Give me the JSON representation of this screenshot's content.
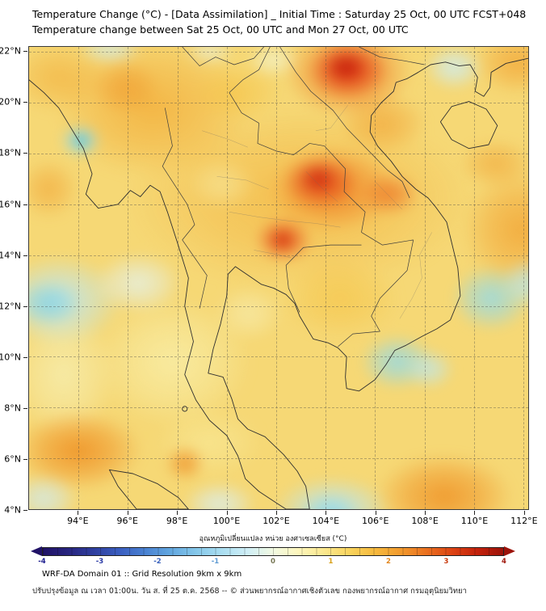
{
  "header": {
    "title": "Temperature Change (°C) - [Data Assimilation] _ Initial Time : Saturday 25 Oct, 00 UTC FCST+048",
    "subtitle": "Temperature change between Sat 25 Oct, 00 UTC and Mon 27 Oct, 00 UTC"
  },
  "map": {
    "lon_range": [
      92.0,
      112.2
    ],
    "lat_range": [
      4.0,
      22.2
    ],
    "base_color": "#f6d875",
    "x_ticks": [
      {
        "label": "94°E",
        "lon": 94
      },
      {
        "label": "96°E",
        "lon": 96
      },
      {
        "label": "98°E",
        "lon": 98
      },
      {
        "label": "100°E",
        "lon": 100
      },
      {
        "label": "102°E",
        "lon": 102
      },
      {
        "label": "104°E",
        "lon": 104
      },
      {
        "label": "106°E",
        "lon": 106
      },
      {
        "label": "108°E",
        "lon": 108
      },
      {
        "label": "110°E",
        "lon": 110
      },
      {
        "label": "112°E",
        "lon": 112
      }
    ],
    "y_ticks": [
      {
        "label": "22°N",
        "lat": 22
      },
      {
        "label": "20°N",
        "lat": 20
      },
      {
        "label": "18°N",
        "lat": 18
      },
      {
        "label": "16°N",
        "lat": 16
      },
      {
        "label": "14°N",
        "lat": 14
      },
      {
        "label": "12°N",
        "lat": 12
      },
      {
        "label": "10°N",
        "lat": 10
      },
      {
        "label": "8°N",
        "lat": 8
      },
      {
        "label": "6°N",
        "lat": 6
      },
      {
        "label": "4°N",
        "lat": 4
      }
    ],
    "regions": [
      {
        "lon": 103.0,
        "lat": 16.2,
        "rx": 7.0,
        "ry": 3.6,
        "color": "#f3ae38",
        "alpha": 0.6
      },
      {
        "lon": 97.0,
        "lat": 19.8,
        "rx": 4.0,
        "ry": 2.8,
        "color": "#f2a832",
        "alpha": 0.7
      },
      {
        "lon": 93.2,
        "lat": 21.0,
        "rx": 2.0,
        "ry": 1.4,
        "color": "#f2a832",
        "alpha": 0.55
      },
      {
        "lon": 104.6,
        "lat": 12.3,
        "rx": 2.4,
        "ry": 1.6,
        "color": "#f5c244",
        "alpha": 0.6
      },
      {
        "lon": 100.4,
        "lat": 20.4,
        "rx": 1.8,
        "ry": 1.2,
        "color": "#f5c244",
        "alpha": 0.6
      },
      {
        "lon": 97.8,
        "lat": 9.8,
        "rx": 3.2,
        "ry": 2.6,
        "color": "#f8eda6",
        "alpha": 0.85
      },
      {
        "lon": 93.4,
        "lat": 9.3,
        "rx": 2.2,
        "ry": 2.6,
        "color": "#f6eeb0",
        "alpha": 0.8
      },
      {
        "lon": 99.3,
        "lat": 6.6,
        "rx": 2.2,
        "ry": 1.4,
        "color": "#f8e896",
        "alpha": 0.7
      },
      {
        "lon": 94.0,
        "lat": 6.3,
        "rx": 2.6,
        "ry": 1.6,
        "color": "#ef9226",
        "alpha": 0.9
      },
      {
        "lon": 98.3,
        "lat": 5.8,
        "rx": 0.8,
        "ry": 0.7,
        "color": "#ee8f26",
        "alpha": 0.8
      },
      {
        "lon": 108.8,
        "lat": 4.5,
        "rx": 2.8,
        "ry": 1.7,
        "color": "#ef9226",
        "alpha": 0.85
      },
      {
        "lon": 111.9,
        "lat": 15.0,
        "rx": 2.4,
        "ry": 2.4,
        "color": "#f1a030",
        "alpha": 0.75
      },
      {
        "lon": 111.8,
        "lat": 21.6,
        "rx": 1.8,
        "ry": 1.3,
        "color": "#f1a030",
        "alpha": 0.7
      },
      {
        "lon": 110.9,
        "lat": 17.6,
        "rx": 1.5,
        "ry": 1.0,
        "color": "#f0a334",
        "alpha": 0.6
      },
      {
        "lon": 106.3,
        "lat": 19.2,
        "rx": 1.8,
        "ry": 1.2,
        "color": "#f09c2e",
        "alpha": 0.6
      },
      {
        "lon": 92.8,
        "lat": 16.6,
        "rx": 1.2,
        "ry": 1.2,
        "color": "#f1a334",
        "alpha": 0.6
      },
      {
        "lon": 99.8,
        "lat": 16.8,
        "rx": 1.4,
        "ry": 1.0,
        "color": "#f6e596",
        "alpha": 0.7
      },
      {
        "lon": 100.9,
        "lat": 11.7,
        "rx": 1.4,
        "ry": 1.1,
        "color": "#f7efb6",
        "alpha": 0.6
      },
      {
        "lon": 93.2,
        "lat": 12.2,
        "rx": 2.6,
        "ry": 1.8,
        "color": "#bfe7ee",
        "alpha": 0.9
      },
      {
        "lon": 92.8,
        "lat": 12.1,
        "rx": 1.3,
        "ry": 0.9,
        "color": "#86d3e4",
        "alpha": 0.85
      },
      {
        "lon": 96.4,
        "lat": 12.9,
        "rx": 1.8,
        "ry": 1.2,
        "color": "#e2f3f2",
        "alpha": 0.75
      },
      {
        "lon": 94.1,
        "lat": 18.5,
        "rx": 0.85,
        "ry": 0.7,
        "color": "#8fd8e8",
        "alpha": 0.9
      },
      {
        "lon": 94.1,
        "lat": 18.5,
        "rx": 0.4,
        "ry": 0.33,
        "color": "#4cc0da",
        "alpha": 0.9
      },
      {
        "lon": 104.3,
        "lat": 4.0,
        "rx": 2.4,
        "ry": 1.3,
        "color": "#b9e6f0",
        "alpha": 0.9
      },
      {
        "lon": 104.2,
        "lat": 3.9,
        "rx": 1.2,
        "ry": 0.7,
        "color": "#8ed6e9",
        "alpha": 0.8
      },
      {
        "lon": 99.7,
        "lat": 4.2,
        "rx": 1.5,
        "ry": 0.9,
        "color": "#d8eff3",
        "alpha": 0.8
      },
      {
        "lon": 106.9,
        "lat": 9.8,
        "rx": 1.5,
        "ry": 1.1,
        "color": "#93dae9",
        "alpha": 0.85
      },
      {
        "lon": 108.2,
        "lat": 9.5,
        "rx": 1.0,
        "ry": 0.8,
        "color": "#bce7f0",
        "alpha": 0.75
      },
      {
        "lon": 110.7,
        "lat": 12.3,
        "rx": 1.6,
        "ry": 1.3,
        "color": "#93dae9",
        "alpha": 0.85
      },
      {
        "lon": 112.2,
        "lat": 12.9,
        "rx": 1.1,
        "ry": 1.0,
        "color": "#b7e5ee",
        "alpha": 0.8
      },
      {
        "lon": 109.2,
        "lat": 21.4,
        "rx": 1.2,
        "ry": 0.9,
        "color": "#cdedf3",
        "alpha": 0.85
      },
      {
        "lon": 95.3,
        "lat": 22.1,
        "rx": 1.3,
        "ry": 0.6,
        "color": "#cfeef2",
        "alpha": 0.75
      },
      {
        "lon": 99.3,
        "lat": 22.0,
        "rx": 1.0,
        "ry": 0.5,
        "color": "#e6f5ef",
        "alpha": 0.6
      },
      {
        "lon": 101.9,
        "lat": 21.7,
        "rx": 1.1,
        "ry": 0.7,
        "color": "#f2f7d8",
        "alpha": 0.7
      },
      {
        "lon": 92.6,
        "lat": 4.4,
        "rx": 1.4,
        "ry": 1.0,
        "color": "#cfeaf0",
        "alpha": 0.8
      },
      {
        "lon": 104.9,
        "lat": 21.2,
        "rx": 2.6,
        "ry": 1.8,
        "color": "#ee7c24",
        "alpha": 0.85
      },
      {
        "lon": 104.9,
        "lat": 21.3,
        "rx": 1.6,
        "ry": 1.15,
        "color": "#e13a16",
        "alpha": 0.9
      },
      {
        "lon": 104.8,
        "lat": 21.4,
        "rx": 0.85,
        "ry": 0.6,
        "color": "#c21a0a",
        "alpha": 0.85
      },
      {
        "lon": 104.3,
        "lat": 16.6,
        "rx": 2.6,
        "ry": 1.7,
        "color": "#ef7e24",
        "alpha": 0.8
      },
      {
        "lon": 103.8,
        "lat": 16.9,
        "rx": 1.5,
        "ry": 1.05,
        "color": "#e34c1a",
        "alpha": 0.9
      },
      {
        "lon": 103.7,
        "lat": 17.0,
        "rx": 0.75,
        "ry": 0.55,
        "color": "#cd2810",
        "alpha": 0.8
      },
      {
        "lon": 106.6,
        "lat": 16.4,
        "rx": 1.2,
        "ry": 0.85,
        "color": "#ec6f22",
        "alpha": 0.7
      },
      {
        "lon": 102.3,
        "lat": 14.6,
        "rx": 1.15,
        "ry": 0.9,
        "color": "#e7541c",
        "alpha": 0.9
      },
      {
        "lon": 102.25,
        "lat": 14.6,
        "rx": 0.55,
        "ry": 0.45,
        "color": "#d2300f",
        "alpha": 0.8
      },
      {
        "lon": 95.9,
        "lat": 20.6,
        "rx": 1.4,
        "ry": 1.1,
        "color": "#ef9428",
        "alpha": 0.55
      }
    ]
  },
  "colorbar": {
    "title": "อุณหภูมิเปลี่ยนแปลง หน่วย องศาเซลเซียส (°C)",
    "gradient": [
      "#201266",
      "#28257f",
      "#2f3f9f",
      "#3a5ec0",
      "#4a82d2",
      "#63a8e0",
      "#86c8ea",
      "#aadef1",
      "#cfeef6",
      "#f2fae2",
      "#fdf6bc",
      "#fbe88e",
      "#f9d45e",
      "#f6b93e",
      "#f29a2e",
      "#ea7120",
      "#dd4414",
      "#c3220c",
      "#9c130a"
    ],
    "segments": 32,
    "ticks": [
      {
        "label": "-4",
        "color": "#1c1c8e"
      },
      {
        "label": "-3",
        "color": "#2a3aa6"
      },
      {
        "label": "-2",
        "color": "#3a62bc"
      },
      {
        "label": "-1",
        "color": "#5d9ad2"
      },
      {
        "label": "0",
        "color": "#777755"
      },
      {
        "label": "1",
        "color": "#d8a018"
      },
      {
        "label": "2",
        "color": "#e2861c"
      },
      {
        "label": "3",
        "color": "#c93c10"
      },
      {
        "label": "4",
        "color": "#9e150a"
      }
    ]
  },
  "footer": {
    "line1": "WRF-DA Domain 01 :: Grid Resolution 9km x 9km",
    "line2": "ปรับปรุงข้อมูล ณ เวลา 01:00น. วัน ส. ที่ 25 ต.ค. 2568 -- © ส่วนพยากรณ์อากาศเชิงตัวเลข กองพยากรณ์อากาศ กรมอุตุนิยมวิทยา"
  }
}
